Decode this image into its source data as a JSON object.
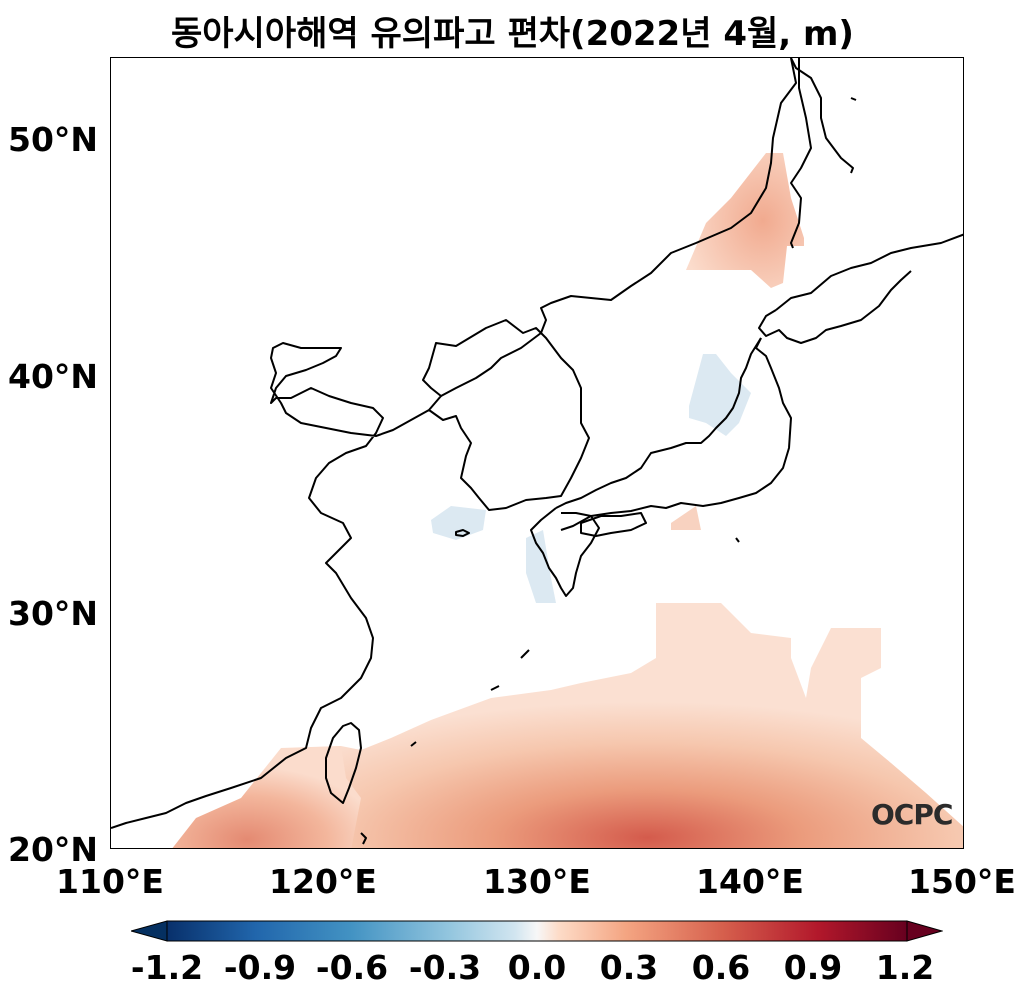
{
  "title": "동아시아해역 유의파고 편차(2022년 4월, m)",
  "logo_text": "OCPC",
  "axes": {
    "lon_labels": [
      "110°E",
      "120°E",
      "130°E",
      "140°E",
      "150°E"
    ],
    "lat_labels": [
      "50°N",
      "40°N",
      "30°N",
      "20°N"
    ],
    "lon_range": [
      110,
      150
    ],
    "lat_range": [
      20,
      53.5
    ]
  },
  "colorbar": {
    "colormap": "RdBu_r (blue negative, red positive)",
    "range": [
      -1.2,
      1.2
    ],
    "extend": "both",
    "tick_labels": [
      "-1.2",
      "-0.9",
      "-0.6",
      "-0.3",
      "0.0",
      "0.3",
      "0.6",
      "0.9",
      "1.2"
    ]
  },
  "anomaly_regions": [
    {
      "area": "North Pacific south of Japan (subtropical band)",
      "sign": "positive",
      "max_value": 0.7
    },
    {
      "area": "Northern Sea of Japan / Tatar Strait",
      "sign": "positive",
      "max_value": 0.35
    },
    {
      "area": "South China Sea / Taiwan Strait area",
      "sign": "positive",
      "max_value": 0.5
    },
    {
      "area": "Off northern Honshu (Sea of Japan side)",
      "sign": "negative",
      "max_value": -0.15
    },
    {
      "area": "Southwest of Korean Peninsula",
      "sign": "negative",
      "max_value": -0.1
    },
    {
      "area": "West of Kyushu",
      "sign": "negative",
      "max_value": -0.1
    }
  ],
  "colors": {
    "positive_light": "#fbe0d2",
    "positive_mid": "#f0a585",
    "positive_strong": "#d8604f",
    "negative_light": "#dce9f2"
  }
}
